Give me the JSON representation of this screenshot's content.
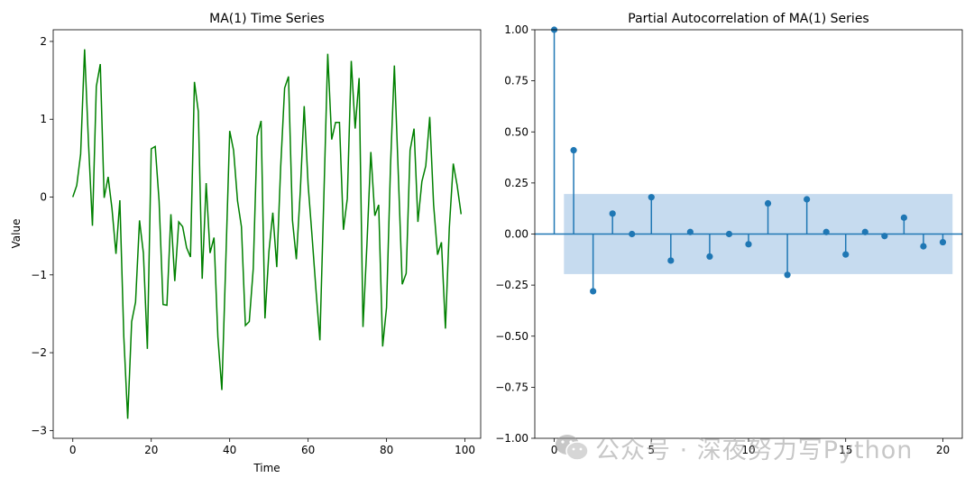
{
  "chart_data": [
    {
      "type": "line",
      "title": "MA(1) Time Series",
      "xlabel": "Time",
      "ylabel": "Value",
      "xlim": [
        -5,
        104
      ],
      "ylim": [
        -3.1,
        2.15
      ],
      "xticks": [
        0,
        20,
        40,
        60,
        80,
        100
      ],
      "yticks": [
        -3,
        -2,
        -1,
        0,
        1,
        2
      ],
      "color": "#008000",
      "series": [
        {
          "x": [
            0,
            1,
            2,
            3,
            4,
            5,
            6,
            7,
            8,
            9,
            10,
            11,
            12,
            13,
            14,
            15,
            16,
            17,
            18,
            19,
            20,
            21,
            22,
            23,
            24,
            25,
            26,
            27,
            28,
            29,
            30,
            31,
            32,
            33,
            34,
            35,
            36,
            37,
            38,
            39,
            40,
            41,
            42,
            43,
            44,
            45,
            46,
            47,
            48,
            49,
            50,
            51,
            52,
            53,
            54,
            55,
            56,
            57,
            58,
            59,
            60,
            61,
            62,
            63,
            64,
            65,
            66,
            67,
            68,
            69,
            70,
            71,
            72,
            73,
            74,
            75,
            76,
            77,
            78,
            79,
            80,
            81,
            82,
            83,
            84,
            85,
            86,
            87,
            88,
            89,
            90,
            91,
            92,
            93,
            94,
            95,
            96,
            97,
            98,
            99
          ],
          "values": [
            0.0,
            0.15,
            0.55,
            1.9,
            0.7,
            -0.37,
            1.42,
            1.71,
            -0.01,
            0.26,
            -0.15,
            -0.73,
            -0.04,
            -1.8,
            -2.85,
            -1.6,
            -1.35,
            -0.3,
            -0.72,
            -1.95,
            0.62,
            0.65,
            -0.05,
            -1.38,
            -1.39,
            -0.22,
            -1.08,
            -0.32,
            -0.38,
            -0.65,
            -0.77,
            1.48,
            1.1,
            -1.05,
            0.18,
            -0.72,
            -0.52,
            -1.8,
            -2.48,
            -0.85,
            0.85,
            0.6,
            -0.05,
            -0.38,
            -1.65,
            -1.6,
            -0.92,
            0.78,
            0.98,
            -1.56,
            -0.7,
            -0.2,
            -0.9,
            0.38,
            1.4,
            1.55,
            -0.3,
            -0.8,
            0.08,
            1.17,
            0.15,
            -0.5,
            -1.2,
            -1.84,
            0.0,
            1.84,
            0.74,
            0.96,
            0.96,
            -0.42,
            -0.02,
            1.75,
            0.88,
            1.53,
            -1.67,
            -0.6,
            0.58,
            -0.24,
            -0.1,
            -1.92,
            -1.42,
            0.4,
            1.69,
            0.28,
            -1.12,
            -0.98,
            0.6,
            0.88,
            -0.32,
            0.2,
            0.4,
            1.03,
            -0.1,
            -0.74,
            -0.58,
            -1.69,
            -0.4,
            0.43,
            0.15,
            -0.22
          ]
        }
      ]
    },
    {
      "type": "stem",
      "title": "Partial Autocorrelation of MA(1) Series",
      "xlim": [
        -1,
        21
      ],
      "ylim": [
        -1.0,
        1.0
      ],
      "xticks": [
        0,
        5,
        10,
        15,
        20
      ],
      "yticks": [
        -1.0,
        -0.75,
        -0.5,
        -0.25,
        0.0,
        0.25,
        0.5,
        0.75,
        1.0
      ],
      "ytick_labels": [
        "−1.00",
        "−0.75",
        "−0.50",
        "−0.25",
        "0.00",
        "0.25",
        "0.50",
        "0.75",
        "1.00"
      ],
      "color": "#1f77b4",
      "confidence_band": {
        "x_start": 0.5,
        "x_end": 20.5,
        "lower": -0.196,
        "upper": 0.196,
        "color": "#c6dbef"
      },
      "lags": [
        0,
        1,
        2,
        3,
        4,
        5,
        6,
        7,
        8,
        9,
        10,
        11,
        12,
        13,
        14,
        15,
        16,
        17,
        18,
        19,
        20
      ],
      "values": [
        1.0,
        0.41,
        -0.28,
        0.1,
        0.0,
        0.18,
        -0.13,
        0.01,
        -0.11,
        0.0,
        -0.05,
        0.15,
        -0.2,
        0.17,
        0.01,
        -0.1,
        0.01,
        -0.01,
        0.08,
        -0.06,
        -0.04
      ]
    }
  ],
  "watermark": {
    "text": "公众号 · 深夜努力写Python",
    "icon": "wechat-icon"
  }
}
